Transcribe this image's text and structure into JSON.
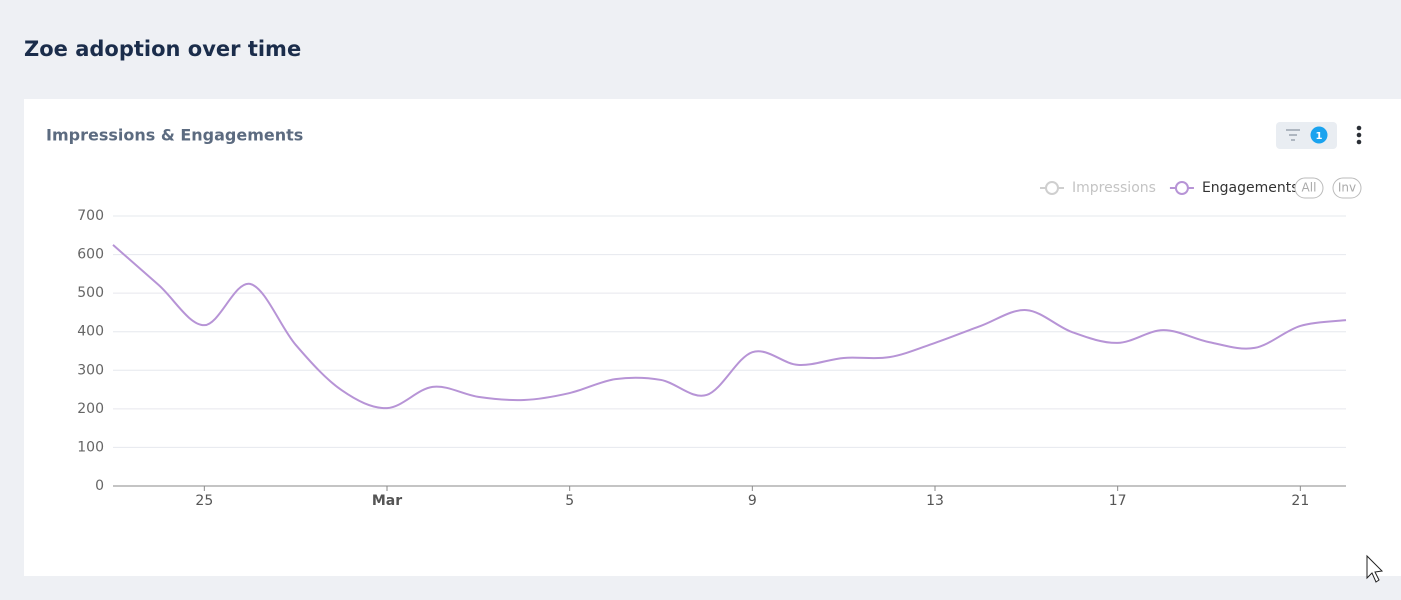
{
  "page": {
    "title": "Zoe adoption over time"
  },
  "card": {
    "title": "Impressions & Engagements",
    "filter_count": 1,
    "legend_buttons": [
      "All",
      "Inv"
    ]
  },
  "chart_data": {
    "type": "line",
    "categories": [
      null,
      null,
      "25",
      null,
      null,
      null,
      "Mar",
      null,
      null,
      null,
      "5",
      null,
      null,
      null,
      "9",
      null,
      null,
      null,
      "13",
      null,
      null,
      null,
      "17",
      null,
      null,
      null,
      "21",
      null
    ],
    "series": [
      {
        "name": "Impressions",
        "color": "#c9c9c9",
        "visible": false
      },
      {
        "name": "Engagements",
        "color": "#b794d6",
        "visible": true,
        "values": [
          625,
          521,
          417,
          524,
          366,
          249,
          202,
          257,
          231,
          223,
          241,
          277,
          275,
          236,
          347,
          314,
          332,
          334,
          371,
          415,
          456,
          399,
          371,
          404,
          373,
          358,
          415,
          430
        ]
      }
    ],
    "ylim": [
      0,
      700
    ],
    "yticks": [
      0,
      100,
      200,
      300,
      400,
      500,
      600,
      700
    ],
    "grid": true,
    "smooth": true,
    "legend": "top-right"
  }
}
